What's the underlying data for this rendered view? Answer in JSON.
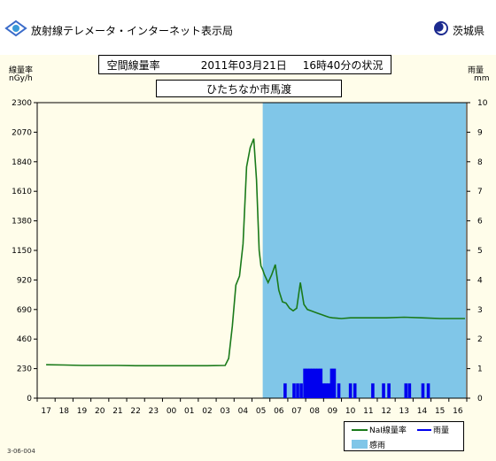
{
  "header": {
    "site_title": "放射線テレメータ・インターネット表示局",
    "org_name": "茨城県",
    "heading": "空間線量率",
    "date_label": "2011年03月21日",
    "time_status": "16時40分の状況",
    "location": "ひたちなか市馬渡"
  },
  "left_axis": {
    "label": "線量率",
    "unit": "nGy/h"
  },
  "right_axis": {
    "label": "雨量",
    "unit": "mm"
  },
  "footer_code": "3-06-004",
  "legend": {
    "dose": "NaI線量率",
    "rain": "雨量",
    "rain_sensor": "感雨"
  },
  "colors": {
    "dose_line": "#1a7a1a",
    "rain_bar": "#0000ee",
    "rain_sensor": "#80c6e8",
    "plot_bg": "#fffdea"
  },
  "chart_data": {
    "type": "line",
    "x_categories": [
      "17",
      "18",
      "19",
      "20",
      "21",
      "22",
      "23",
      "00",
      "01",
      "02",
      "03",
      "04",
      "05",
      "06",
      "07",
      "08",
      "09",
      "10",
      "11",
      "12",
      "13",
      "14",
      "15",
      "16"
    ],
    "y_left": {
      "ticks": [
        0,
        230,
        460,
        690,
        920,
        1150,
        1380,
        1610,
        1840,
        2070,
        2300
      ],
      "ylim": [
        0,
        2300
      ]
    },
    "y_right": {
      "ticks": [
        0,
        1,
        2,
        3,
        4,
        5,
        6,
        7,
        8,
        9,
        10
      ],
      "ylim": [
        0,
        10
      ]
    },
    "dose_series": {
      "name": "NaI線量率",
      "x": [
        0,
        1,
        2,
        3,
        4,
        5,
        6,
        7,
        8,
        9,
        10,
        10.2,
        10.4,
        10.6,
        10.8,
        11.0,
        11.2,
        11.4,
        11.6,
        11.75,
        11.9,
        12.0,
        12.1,
        12.2,
        12.4,
        12.6,
        12.8,
        13.0,
        13.2,
        13.4,
        13.6,
        13.8,
        14.0,
        14.2,
        14.4,
        14.6,
        14.8,
        15.0,
        15.2,
        15.4,
        15.6,
        15.8,
        16.0,
        16.5,
        17,
        18,
        19,
        20,
        21,
        22,
        23,
        23.4
      ],
      "y": [
        260,
        258,
        255,
        255,
        255,
        253,
        253,
        253,
        253,
        253,
        255,
        310,
        560,
        880,
        950,
        1200,
        1800,
        1950,
        2020,
        1700,
        1150,
        1030,
        1000,
        960,
        900,
        960,
        1040,
        840,
        750,
        740,
        700,
        680,
        700,
        900,
        730,
        690,
        680,
        670,
        660,
        650,
        640,
        630,
        625,
        620,
        625,
        625,
        625,
        630,
        625,
        620,
        620,
        620
      ]
    },
    "rain_sensor_period": [
      12.1,
      23.45
    ],
    "rain_series": {
      "name": "雨量",
      "x": [
        13.35,
        13.85,
        14.05,
        14.25,
        14.45,
        14.6,
        14.75,
        14.9,
        15.05,
        15.2,
        15.35,
        15.5,
        15.65,
        15.8,
        15.95,
        16.1,
        16.35,
        17.0,
        17.25,
        18.25,
        18.85,
        19.15,
        20.1,
        20.3,
        21.05,
        21.35
      ],
      "y": [
        0.5,
        0.5,
        0.5,
        0.5,
        1.0,
        1.0,
        1.0,
        1.0,
        1.0,
        1.0,
        1.0,
        0.5,
        0.5,
        0.5,
        1.0,
        1.0,
        0.5,
        0.5,
        0.5,
        0.5,
        0.5,
        0.5,
        0.5,
        0.5,
        0.5,
        0.5
      ]
    }
  }
}
